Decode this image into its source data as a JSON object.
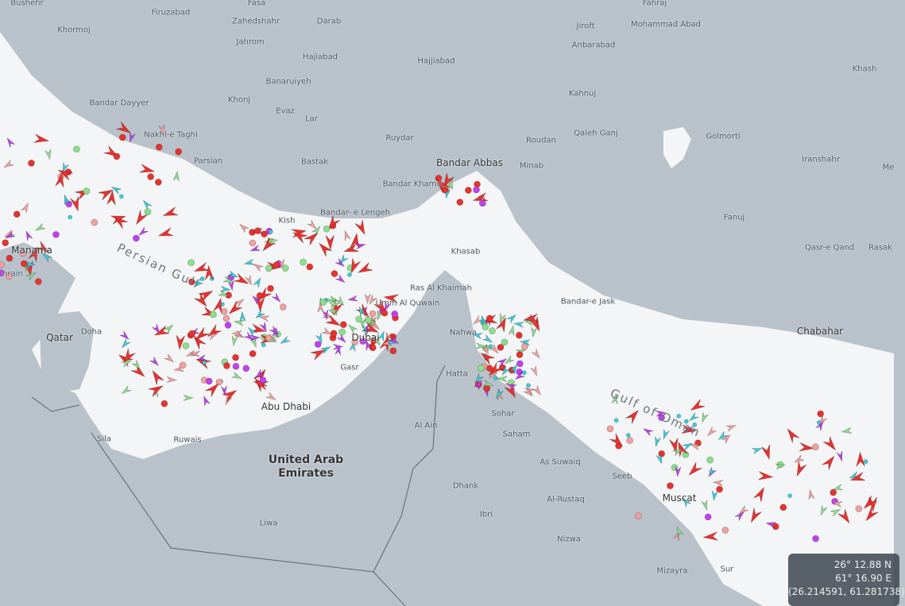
{
  "map": {
    "colors": {
      "land": "#b9c2ca",
      "sea": "#f4f5f6",
      "cargo": "#e8322e",
      "tanker": "#8be08b",
      "passenger": "#35d0e0",
      "fishing": "#f4a0a0",
      "pleasure": "#c040f0",
      "border": "#5a646e"
    },
    "places": [
      {
        "name": "Bushehr"
      },
      {
        "name": "Firuzabad"
      },
      {
        "name": "Fasa"
      },
      {
        "name": "Zahedshahr"
      },
      {
        "name": "Darab"
      },
      {
        "name": "Jiroft"
      },
      {
        "name": "Fahraj"
      },
      {
        "name": "Mohammad Abad"
      },
      {
        "name": "Khormoj"
      },
      {
        "name": "Jahrom"
      },
      {
        "name": "Anbarabad"
      },
      {
        "name": "Hajiabad"
      },
      {
        "name": "Hajjiabad"
      },
      {
        "name": "Khash"
      },
      {
        "name": "Bandar Dayyer"
      },
      {
        "name": "Banaruiyeh"
      },
      {
        "name": "Khonj"
      },
      {
        "name": "Evaz"
      },
      {
        "name": "Lar"
      },
      {
        "name": "Kahnuj"
      },
      {
        "name": "Nakhl-e Taghi"
      },
      {
        "name": "Parsian"
      },
      {
        "name": "Bastak"
      },
      {
        "name": "Ruydar"
      },
      {
        "name": "Roudan"
      },
      {
        "name": "Qaleh Ganj"
      },
      {
        "name": "Golmorti"
      },
      {
        "name": "Minab"
      },
      {
        "name": "Bandar Abbas"
      },
      {
        "name": "Bandar Khamir"
      },
      {
        "name": "Iranshahr"
      },
      {
        "name": "Me"
      },
      {
        "name": "Bandar-\ne Lengeh"
      },
      {
        "name": "Kish"
      },
      {
        "name": "Fanuj"
      },
      {
        "name": "Khasab"
      },
      {
        "name": "Manama"
      },
      {
        "name": "hrain"
      },
      {
        "name": "Ras Al Khaimah"
      },
      {
        "name": "Umm Al Quwain"
      },
      {
        "name": "Qasr-e Qand"
      },
      {
        "name": "Rasak"
      },
      {
        "name": "Bandar-e Jask"
      },
      {
        "name": "Qatar"
      },
      {
        "name": "Doha"
      },
      {
        "name": "Dubai"
      },
      {
        "name": "Nahwa"
      },
      {
        "name": "Chabahar"
      },
      {
        "name": "Gasr"
      },
      {
        "name": "Hatta"
      },
      {
        "name": "Sohar"
      },
      {
        "name": "Abu Dhabi"
      },
      {
        "name": "Saham"
      },
      {
        "name": "Al Ain"
      },
      {
        "name": "Sila"
      },
      {
        "name": "Ruwais"
      },
      {
        "name": "United Arab\nEmirates"
      },
      {
        "name": "As Suwaiq"
      },
      {
        "name": "Seeb"
      },
      {
        "name": "Muscat"
      },
      {
        "name": "Dhank"
      },
      {
        "name": "Al-Rustaq"
      },
      {
        "name": "Ibri"
      },
      {
        "name": "Liwa"
      },
      {
        "name": "Nizwa"
      },
      {
        "name": "Mizayra"
      },
      {
        "name": "Sur"
      }
    ],
    "seas": [
      {
        "name": "Persian Gulf"
      },
      {
        "name": "Gulf of Oman"
      }
    ]
  },
  "coordinate_readout": {
    "lat_dms": "26° 12.88 N",
    "lon_dms": "61° 16.90 E",
    "decimal": "(26.214591, 61.281738)"
  }
}
